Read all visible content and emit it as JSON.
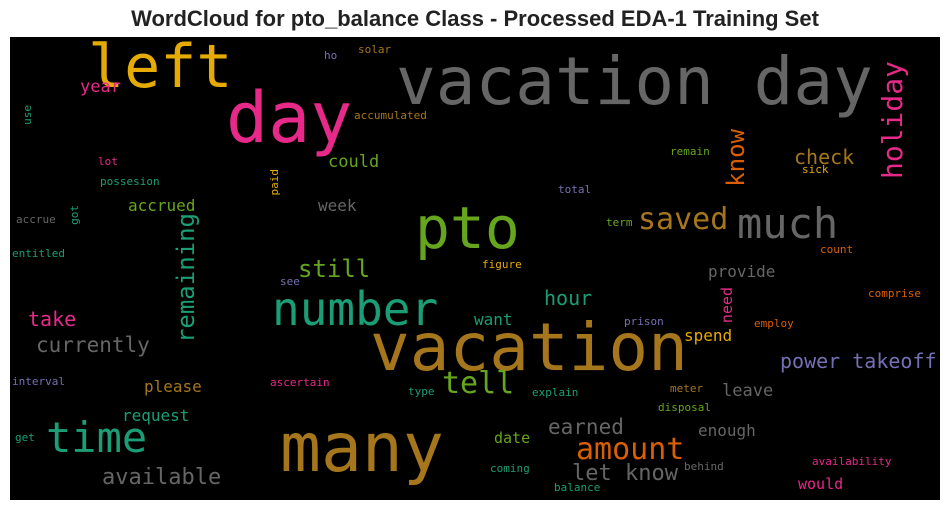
{
  "title": "WordCloud for pto_balance Class - Processed EDA-1 Training Set",
  "colors": {
    "background": "#000000",
    "palette": [
      "#1b9e77",
      "#d95f02",
      "#7570b3",
      "#e7298a",
      "#66a61e",
      "#e6ab02",
      "#a6761d",
      "#666666"
    ]
  },
  "words": [
    {
      "text": "vacation day",
      "color": "#666666"
    },
    {
      "text": "left",
      "color": "#e6ab02"
    },
    {
      "text": "day",
      "color": "#e7298a"
    },
    {
      "text": "vacation",
      "color": "#a6761d"
    },
    {
      "text": "many",
      "color": "#a6761d"
    },
    {
      "text": "pto",
      "color": "#66a61e"
    },
    {
      "text": "number",
      "color": "#1b9e77"
    },
    {
      "text": "much",
      "color": "#666666"
    },
    {
      "text": "time",
      "color": "#1b9e77"
    },
    {
      "text": "holiday",
      "color": "#e7298a"
    },
    {
      "text": "saved",
      "color": "#a6761d"
    },
    {
      "text": "amount",
      "color": "#d95f02"
    },
    {
      "text": "know",
      "color": "#d95f02"
    },
    {
      "text": "remaining",
      "color": "#1b9e77"
    },
    {
      "text": "tell",
      "color": "#66a61e"
    },
    {
      "text": "still",
      "color": "#66a61e"
    },
    {
      "text": "check",
      "color": "#a6761d"
    },
    {
      "text": "currently",
      "color": "#666666"
    },
    {
      "text": "available",
      "color": "#666666"
    },
    {
      "text": "power takeoff",
      "color": "#7570b3"
    },
    {
      "text": "let know",
      "color": "#666666"
    },
    {
      "text": "earned",
      "color": "#666666"
    },
    {
      "text": "hour",
      "color": "#1b9e77"
    },
    {
      "text": "take",
      "color": "#e7298a"
    },
    {
      "text": "year",
      "color": "#e7298a"
    },
    {
      "text": "could",
      "color": "#66a61e"
    },
    {
      "text": "accrued",
      "color": "#66a61e"
    },
    {
      "text": "week",
      "color": "#666666"
    },
    {
      "text": "provide",
      "color": "#666666"
    },
    {
      "text": "need",
      "color": "#e7298a"
    },
    {
      "text": "want",
      "color": "#1b9e77"
    },
    {
      "text": "spend",
      "color": "#e6ab02"
    },
    {
      "text": "please",
      "color": "#a6761d"
    },
    {
      "text": "request",
      "color": "#1b9e77"
    },
    {
      "text": "leave",
      "color": "#666666"
    },
    {
      "text": "enough",
      "color": "#666666"
    },
    {
      "text": "date",
      "color": "#66a61e"
    },
    {
      "text": "would",
      "color": "#e7298a"
    },
    {
      "text": "accumulated",
      "color": "#a6761d"
    },
    {
      "text": "solar",
      "color": "#a6761d"
    },
    {
      "text": "ho",
      "color": "#7570b3"
    },
    {
      "text": "use",
      "color": "#1b9e77"
    },
    {
      "text": "lot",
      "color": "#e7298a"
    },
    {
      "text": "possesion",
      "color": "#1b9e77"
    },
    {
      "text": "paid",
      "color": "#e6ab02"
    },
    {
      "text": "remain",
      "color": "#66a61e"
    },
    {
      "text": "sick",
      "color": "#e6ab02"
    },
    {
      "text": "total",
      "color": "#7570b3"
    },
    {
      "text": "accrue",
      "color": "#666666"
    },
    {
      "text": "got",
      "color": "#1b9e77"
    },
    {
      "text": "entitled",
      "color": "#1b9e77"
    },
    {
      "text": "term",
      "color": "#66a61e"
    },
    {
      "text": "count",
      "color": "#d95f02"
    },
    {
      "text": "see",
      "color": "#7570b3"
    },
    {
      "text": "figure",
      "color": "#e6ab02"
    },
    {
      "text": "comprise",
      "color": "#d95f02"
    },
    {
      "text": "prison",
      "color": "#7570b3"
    },
    {
      "text": "employ",
      "color": "#d95f02"
    },
    {
      "text": "interval",
      "color": "#7570b3"
    },
    {
      "text": "ascertain",
      "color": "#e7298a"
    },
    {
      "text": "type",
      "color": "#1b9e77"
    },
    {
      "text": "explain",
      "color": "#1b9e77"
    },
    {
      "text": "meter",
      "color": "#a6761d"
    },
    {
      "text": "disposal",
      "color": "#66a61e"
    },
    {
      "text": "get",
      "color": "#1b9e77"
    },
    {
      "text": "coming",
      "color": "#1b9e77"
    },
    {
      "text": "behind",
      "color": "#666666"
    },
    {
      "text": "availability",
      "color": "#e7298a"
    },
    {
      "text": "balance",
      "color": "#1b9e77"
    }
  ]
}
